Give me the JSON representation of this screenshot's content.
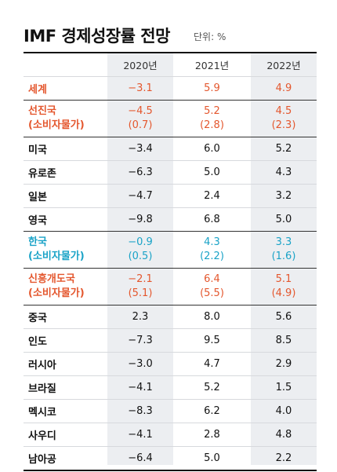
{
  "header": {
    "title": "IMF 경제성장률 전망",
    "unit": "단위: %"
  },
  "table": {
    "columns": [
      "",
      "2020년",
      "2021년",
      "2022년"
    ],
    "accent_colors": {
      "red": "#e4572e",
      "blue": "#1aa3c7"
    },
    "rows": [
      {
        "name": "세계",
        "sub": "",
        "v2020": "−3.1",
        "v2021": "5.9",
        "v2022": "4.9",
        "s2020": "",
        "s2021": "",
        "s2022": "",
        "color": "red"
      },
      {
        "name": "선진국",
        "sub": "(소비자물가)",
        "v2020": "−4.5",
        "v2021": "5.2",
        "v2022": "4.5",
        "s2020": "(0.7)",
        "s2021": "(2.8)",
        "s2022": "(2.3)",
        "color": "red"
      },
      {
        "name": "미국",
        "sub": "",
        "v2020": "−3.4",
        "v2021": "6.0",
        "v2022": "5.2",
        "s2020": "",
        "s2021": "",
        "s2022": "",
        "color": ""
      },
      {
        "name": "유로존",
        "sub": "",
        "v2020": "−6.3",
        "v2021": "5.0",
        "v2022": "4.3",
        "s2020": "",
        "s2021": "",
        "s2022": "",
        "color": ""
      },
      {
        "name": "일본",
        "sub": "",
        "v2020": "−4.7",
        "v2021": "2.4",
        "v2022": "3.2",
        "s2020": "",
        "s2021": "",
        "s2022": "",
        "color": ""
      },
      {
        "name": "영국",
        "sub": "",
        "v2020": "−9.8",
        "v2021": "6.8",
        "v2022": "5.0",
        "s2020": "",
        "s2021": "",
        "s2022": "",
        "color": ""
      },
      {
        "name": "한국",
        "sub": "(소비자물가)",
        "v2020": "−0.9",
        "v2021": "4.3",
        "v2022": "3.3",
        "s2020": "(0.5)",
        "s2021": "(2.2)",
        "s2022": "(1.6)",
        "color": "blue"
      },
      {
        "name": "신흥개도국",
        "sub": "(소비자물가)",
        "v2020": "−2.1",
        "v2021": "6.4",
        "v2022": "5.1",
        "s2020": "(5.1)",
        "s2021": "(5.5)",
        "s2022": "(4.9)",
        "color": "red"
      },
      {
        "name": "중국",
        "sub": "",
        "v2020": "2.3",
        "v2021": "8.0",
        "v2022": "5.6",
        "s2020": "",
        "s2021": "",
        "s2022": "",
        "color": ""
      },
      {
        "name": "인도",
        "sub": "",
        "v2020": "−7.3",
        "v2021": "9.5",
        "v2022": "8.5",
        "s2020": "",
        "s2021": "",
        "s2022": "",
        "color": ""
      },
      {
        "name": "러시아",
        "sub": "",
        "v2020": "−3.0",
        "v2021": "4.7",
        "v2022": "2.9",
        "s2020": "",
        "s2021": "",
        "s2022": "",
        "color": ""
      },
      {
        "name": "브라질",
        "sub": "",
        "v2020": "−4.1",
        "v2021": "5.2",
        "v2022": "1.5",
        "s2020": "",
        "s2021": "",
        "s2022": "",
        "color": ""
      },
      {
        "name": "멕시코",
        "sub": "",
        "v2020": "−8.3",
        "v2021": "6.2",
        "v2022": "4.0",
        "s2020": "",
        "s2021": "",
        "s2022": "",
        "color": ""
      },
      {
        "name": "사우디",
        "sub": "",
        "v2020": "−4.1",
        "v2021": "2.8",
        "v2022": "4.8",
        "s2020": "",
        "s2021": "",
        "s2022": "",
        "color": ""
      },
      {
        "name": "남아공",
        "sub": "",
        "v2020": "−6.4",
        "v2021": "5.0",
        "v2022": "2.2",
        "s2020": "",
        "s2021": "",
        "s2022": "",
        "color": ""
      }
    ]
  }
}
